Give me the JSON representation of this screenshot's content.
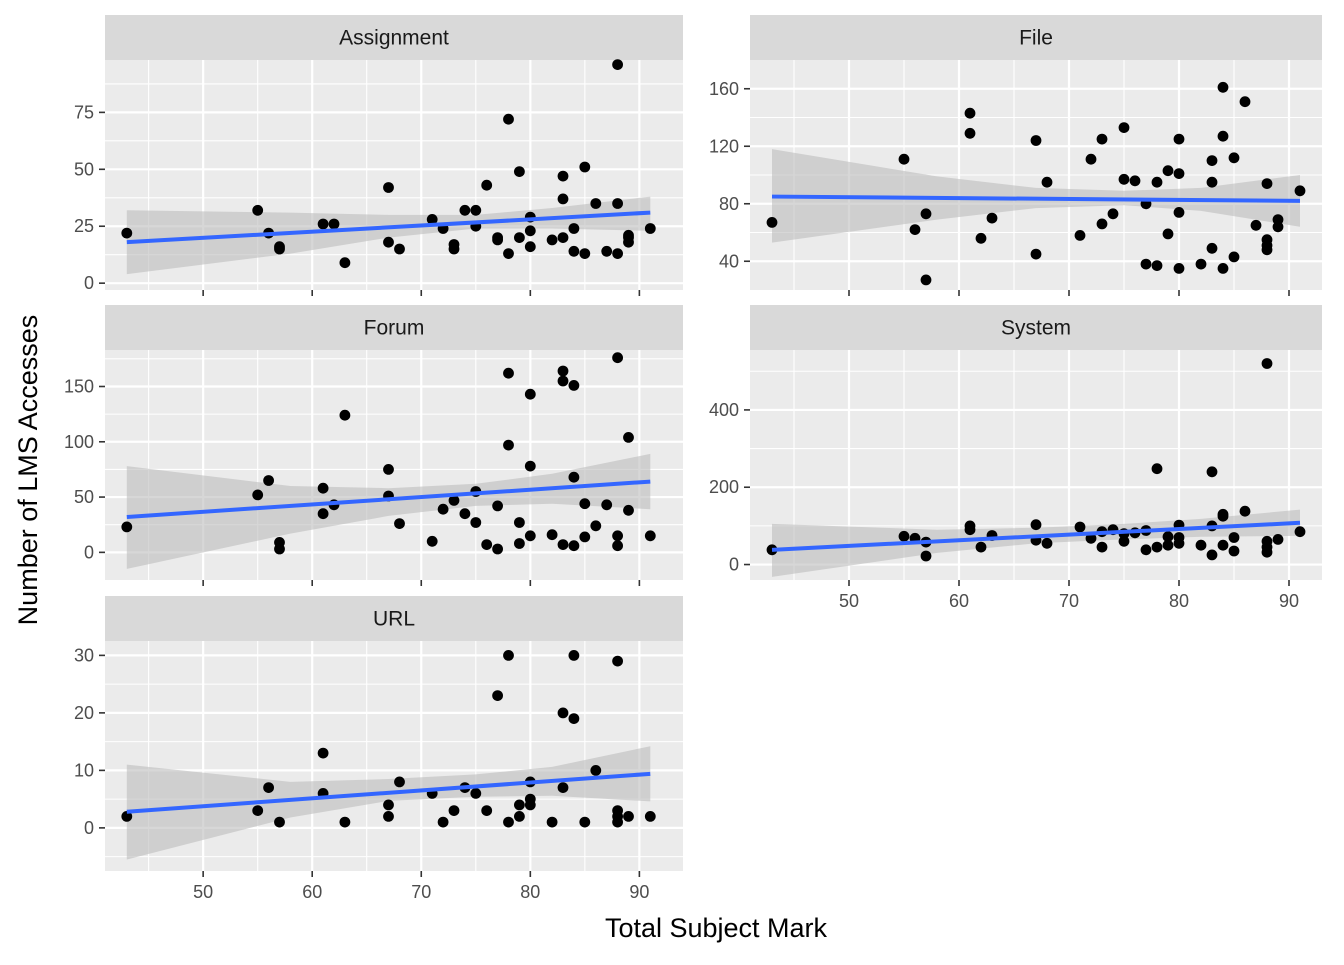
{
  "chart_data": {
    "type": "scatter",
    "xlabel": "Total Subject Mark",
    "ylabel": "Number of LMS Accesses",
    "grid": true,
    "legend": "none",
    "colors": {
      "panel_background": "#ebebeb",
      "grid": "#ffffff",
      "strip_background": "#d9d9d9",
      "point": "#000000",
      "fit_line": "#3366ff",
      "confidence_band": "#bdbdbd"
    },
    "x_ticks": [
      50,
      60,
      70,
      80,
      90
    ],
    "panels": [
      {
        "title": "Assignment",
        "xlim": [
          41,
          94
        ],
        "ylim": [
          -3,
          98
        ],
        "y_ticks": [
          0,
          25,
          50,
          75
        ],
        "fit": {
          "x": [
            43,
            91
          ],
          "y": [
            18,
            31
          ]
        },
        "band": {
          "x": [
            43,
            58,
            67,
            75,
            82,
            91
          ],
          "upper": [
            32,
            31,
            30,
            30,
            33,
            38
          ],
          "lower": [
            4,
            13,
            20,
            24,
            24,
            23
          ]
        },
        "x": [
          43,
          55,
          56,
          57,
          57,
          61,
          62,
          63,
          67,
          67,
          68,
          71,
          72,
          73,
          73,
          74,
          75,
          75,
          76,
          77,
          77,
          78,
          78,
          79,
          79,
          80,
          80,
          80,
          82,
          83,
          83,
          83,
          84,
          84,
          85,
          85,
          86,
          87,
          88,
          88,
          88,
          89,
          89,
          89,
          91
        ],
        "y": [
          22,
          32,
          22,
          16,
          15,
          26,
          26,
          9,
          42,
          18,
          15,
          28,
          24,
          17,
          15,
          32,
          32,
          25,
          43,
          20,
          19,
          72,
          13,
          49,
          20,
          29,
          23,
          16,
          19,
          47,
          37,
          20,
          24,
          14,
          51,
          13,
          35,
          14,
          96,
          35,
          13,
          21,
          18,
          20,
          24
        ]
      },
      {
        "title": "File",
        "xlim": [
          41,
          93
        ],
        "ylim": [
          20,
          180
        ],
        "y_ticks": [
          40,
          80,
          120,
          160
        ],
        "fit": {
          "x": [
            43,
            91
          ],
          "y": [
            85,
            82
          ]
        },
        "band": {
          "x": [
            43,
            58,
            67,
            75,
            82,
            91
          ],
          "upper": [
            118,
            99,
            91,
            89,
            91,
            100
          ],
          "lower": [
            53,
            69,
            77,
            79,
            75,
            64
          ]
        },
        "x": [
          43,
          55,
          56,
          57,
          57,
          61,
          61,
          62,
          63,
          67,
          67,
          68,
          71,
          72,
          73,
          73,
          74,
          75,
          75,
          76,
          77,
          77,
          78,
          78,
          79,
          79,
          80,
          80,
          80,
          80,
          82,
          83,
          83,
          83,
          84,
          84,
          84,
          85,
          85,
          86,
          87,
          88,
          88,
          88,
          88,
          89,
          89,
          91
        ],
        "y": [
          67,
          111,
          62,
          73,
          27,
          143,
          129,
          56,
          70,
          124,
          45,
          95,
          58,
          111,
          66,
          125,
          73,
          97,
          133,
          96,
          38,
          80,
          95,
          37,
          103,
          59,
          125,
          101,
          74,
          35,
          38,
          110,
          95,
          49,
          161,
          127,
          35,
          112,
          43,
          151,
          65,
          94,
          55,
          48,
          51,
          69,
          64,
          89
        ]
      },
      {
        "title": "Forum",
        "xlim": [
          41,
          94
        ],
        "ylim": [
          -25,
          183
        ],
        "y_ticks": [
          0,
          50,
          100,
          150
        ],
        "fit": {
          "x": [
            43,
            91
          ],
          "y": [
            32,
            64
          ]
        },
        "band": {
          "x": [
            43,
            58,
            67,
            75,
            82,
            91
          ],
          "upper": [
            78,
            60,
            58,
            62,
            71,
            89
          ],
          "lower": [
            -15,
            17,
            33,
            42,
            44,
            39
          ]
        },
        "x": [
          43,
          55,
          56,
          57,
          57,
          61,
          61,
          62,
          63,
          67,
          67,
          68,
          71,
          72,
          73,
          74,
          75,
          75,
          76,
          77,
          77,
          78,
          78,
          79,
          79,
          80,
          80,
          80,
          82,
          83,
          83,
          83,
          84,
          84,
          84,
          85,
          85,
          86,
          87,
          88,
          88,
          88,
          89,
          89,
          91
        ],
        "y": [
          23,
          52,
          65,
          9,
          3,
          58,
          35,
          43,
          124,
          75,
          51,
          26,
          10,
          39,
          47,
          35,
          55,
          27,
          7,
          42,
          3,
          162,
          97,
          27,
          8,
          143,
          78,
          15,
          16,
          164,
          155,
          7,
          151,
          68,
          6,
          44,
          14,
          24,
          43,
          176,
          15,
          6,
          104,
          38,
          15
        ]
      },
      {
        "title": "System",
        "xlim": [
          41,
          93
        ],
        "ylim": [
          -40,
          555
        ],
        "y_ticks": [
          0,
          200,
          400
        ],
        "fit": {
          "x": [
            43,
            91
          ],
          "y": [
            38,
            108
          ]
        },
        "band": {
          "x": [
            43,
            58,
            67,
            75,
            82,
            91
          ],
          "upper": [
            105,
            90,
            95,
            105,
            118,
            142
          ],
          "lower": [
            -32,
            30,
            55,
            65,
            72,
            74
          ]
        },
        "x": [
          43,
          55,
          56,
          57,
          57,
          61,
          61,
          62,
          63,
          67,
          67,
          68,
          71,
          72,
          73,
          73,
          74,
          75,
          75,
          76,
          77,
          77,
          78,
          78,
          79,
          79,
          80,
          80,
          80,
          82,
          83,
          83,
          83,
          84,
          84,
          84,
          85,
          85,
          86,
          88,
          88,
          88,
          88,
          89,
          91
        ],
        "y": [
          38,
          73,
          68,
          58,
          22,
          100,
          90,
          45,
          75,
          103,
          63,
          55,
          97,
          68,
          85,
          45,
          90,
          80,
          60,
          82,
          38,
          88,
          248,
          45,
          72,
          50,
          102,
          70,
          55,
          50,
          240,
          100,
          25,
          130,
          125,
          50,
          70,
          35,
          138,
          520,
          60,
          45,
          32,
          65,
          85
        ]
      },
      {
        "title": "URL",
        "xlim": [
          41,
          94
        ],
        "ylim": [
          -7.5,
          32.5
        ],
        "y_ticks": [
          0,
          10,
          20,
          30
        ],
        "fit": {
          "x": [
            43,
            91
          ],
          "y": [
            2.8,
            9.4
          ]
        },
        "band": {
          "x": [
            43,
            58,
            67,
            75,
            82,
            91
          ],
          "upper": [
            11,
            8,
            8.5,
            9.3,
            10.6,
            14.2
          ],
          "lower": [
            -5.5,
            1.8,
            4.7,
            5.4,
            5.6,
            4.6
          ]
        },
        "x": [
          43,
          55,
          56,
          57,
          61,
          61,
          63,
          67,
          67,
          68,
          71,
          72,
          73,
          74,
          75,
          76,
          77,
          78,
          78,
          79,
          79,
          80,
          80,
          80,
          82,
          83,
          83,
          84,
          84,
          85,
          86,
          88,
          88,
          88,
          88,
          89,
          91
        ],
        "y": [
          2,
          3,
          7,
          1,
          13,
          6,
          1,
          4,
          2,
          8,
          6,
          1,
          3,
          7,
          6,
          3,
          23,
          30,
          1,
          4,
          2,
          8,
          5,
          4,
          1,
          20,
          7,
          30,
          19,
          1,
          10,
          29,
          3,
          2,
          1,
          2,
          2
        ]
      }
    ]
  }
}
